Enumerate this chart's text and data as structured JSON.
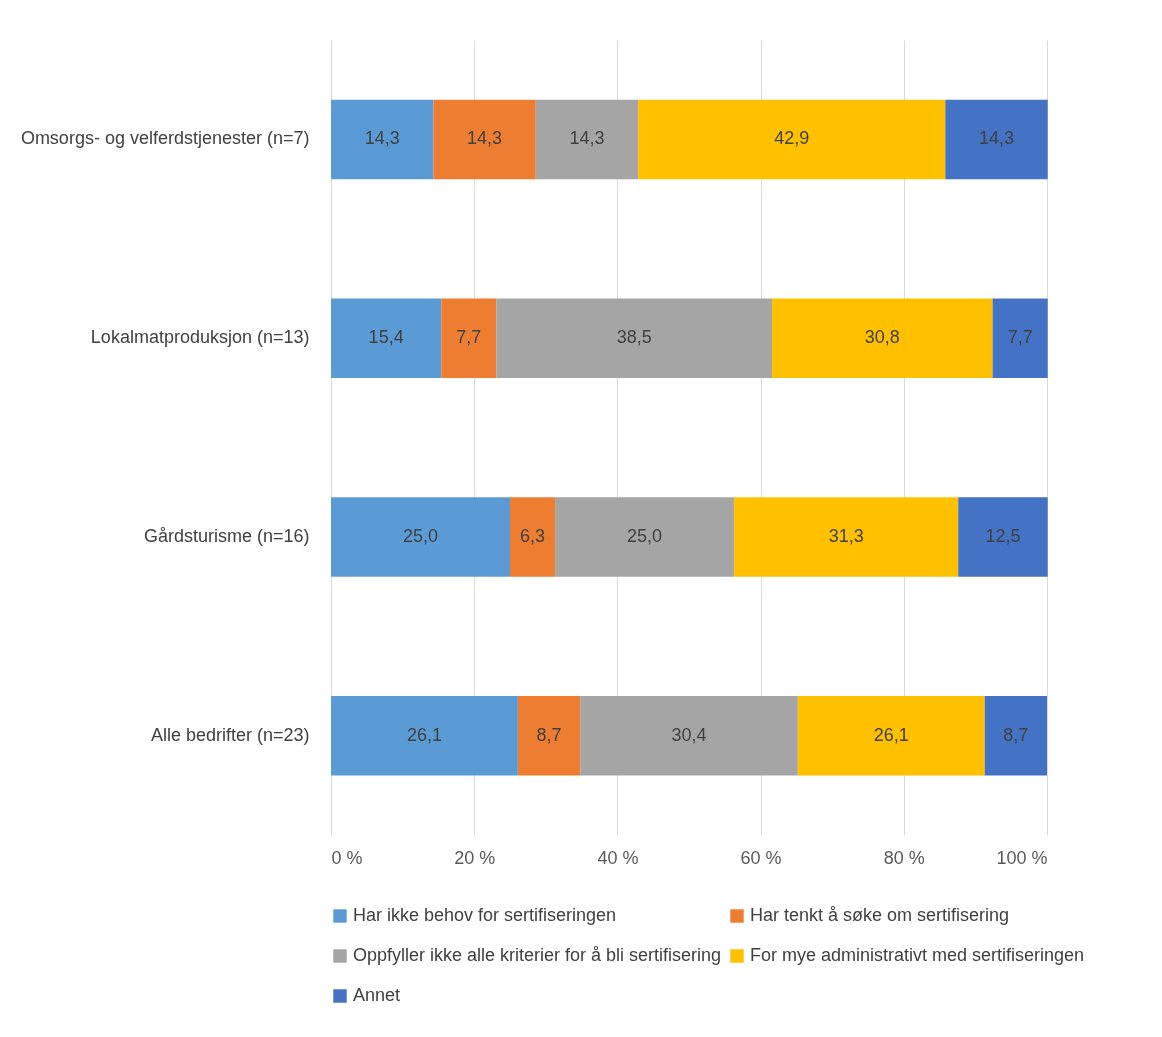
{
  "chart_data": {
    "type": "bar",
    "orientation": "horizontal",
    "stacked": true,
    "categories": [
      "Omsorgs- og velferdstjenester (n=7)",
      "Lokalmatproduksjon (n=13)",
      "Gårdsturisme (n=16)",
      "Alle bedrifter (n=23)"
    ],
    "series": [
      {
        "name": "Har ikke behov for sertifiseringen",
        "color": "#5b9bd5",
        "values": [
          14.3,
          15.4,
          25.0,
          26.1
        ],
        "value_labels": [
          "14,3",
          "15,4",
          "25,0",
          "26,1"
        ]
      },
      {
        "name": "Har tenkt å søke om sertifisering",
        "color": "#ed7d31",
        "values": [
          14.3,
          7.7,
          6.3,
          8.7
        ],
        "value_labels": [
          "14,3",
          "7,7",
          "6,3",
          "8,7"
        ]
      },
      {
        "name": "Oppfyller ikke alle kriterier for å bli sertifisering",
        "color": "#a5a5a5",
        "values": [
          14.3,
          38.5,
          25.0,
          30.4
        ],
        "value_labels": [
          "14,3",
          "38,5",
          "25,0",
          "30,4"
        ]
      },
      {
        "name": "For mye administrativt med sertifiseringen",
        "color": "#ffc000",
        "values": [
          42.9,
          30.8,
          31.3,
          26.1
        ],
        "value_labels": [
          "42,9",
          "30,8",
          "31,3",
          "26,1"
        ]
      },
      {
        "name": "Annet",
        "color": "#4472c4",
        "values": [
          14.3,
          7.7,
          12.5,
          8.7
        ],
        "value_labels": [
          "14,3",
          "7,7",
          "12,5",
          "8,7"
        ]
      }
    ],
    "xlim": [
      0,
      100
    ],
    "xticks": [
      {
        "value": 0,
        "label": "0 %"
      },
      {
        "value": 20,
        "label": "20 %"
      },
      {
        "value": 40,
        "label": "40 %"
      },
      {
        "value": 60,
        "label": "60 %"
      },
      {
        "value": 80,
        "label": "80 %"
      },
      {
        "value": 100,
        "label": "100 %"
      }
    ],
    "grid": "x",
    "legend": "bottom"
  }
}
